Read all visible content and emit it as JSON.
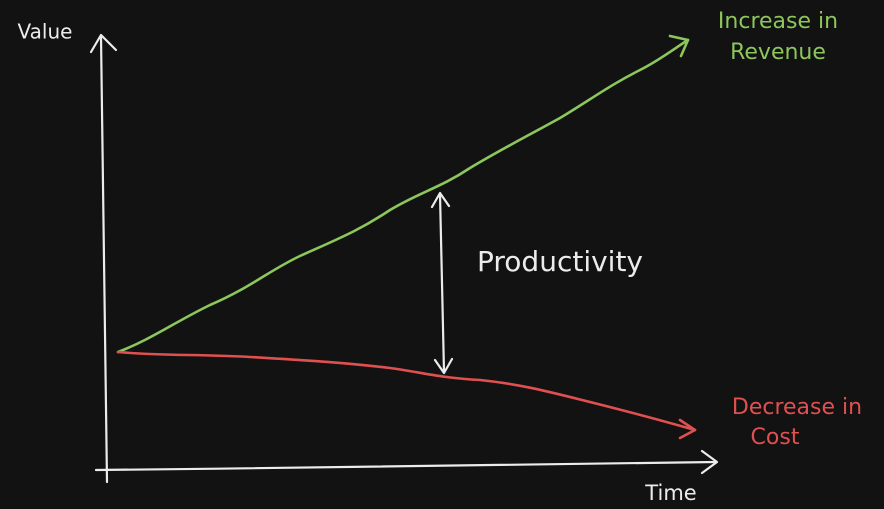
{
  "axes": {
    "y_label": "Value",
    "x_label": "Time"
  },
  "lines": [
    {
      "label_lines": [
        "Increase in",
        "Revenue"
      ],
      "color": "#8cc65c"
    },
    {
      "label_lines": [
        "Decrease in",
        "Cost"
      ],
      "color": "#e05050"
    }
  ],
  "gap_label": "Productivity"
}
